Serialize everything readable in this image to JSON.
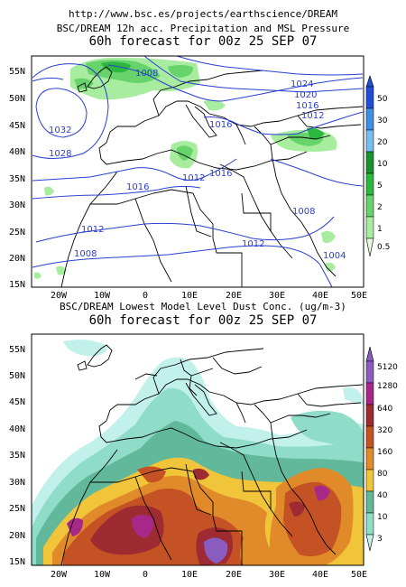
{
  "url": "http://www.bsc.es/projects/earthscience/DREAM",
  "panel1": {
    "title": "BSC/DREAM 12h acc. Precipitation and MSL Pressure",
    "subtitle": "60h forecast for 00z 25 SEP 07",
    "isobar_labels": [
      "1008",
      "1032",
      "1028",
      "1016",
      "1016",
      "1012",
      "1016",
      "1024",
      "1020",
      "1016",
      "1012",
      "1012",
      "1008",
      "1008",
      "1012",
      "1004"
    ],
    "colorbar_labels": [
      "50",
      "30",
      "20",
      "10",
      "5",
      "2",
      "1",
      "0.5"
    ],
    "colorbar_colors": [
      "#1f4fd8",
      "#3f8fe6",
      "#78bdf0",
      "#18922a",
      "#2cb83e",
      "#66d46a",
      "#a8eca0",
      "#e3f9de"
    ]
  },
  "panel2": {
    "title": "BSC/DREAM Lowest Model Level Dust Conc. (ug/m-3)",
    "subtitle": "60h forecast for 00z 25 SEP 07",
    "colorbar_labels": [
      "5120",
      "1280",
      "640",
      "320",
      "160",
      "80",
      "40",
      "10",
      "3"
    ],
    "colorbar_colors": [
      "#8a5cc0",
      "#a8288a",
      "#9e2a32",
      "#c45224",
      "#e08a2a",
      "#f1c53a",
      "#62b89a",
      "#8fdcc8",
      "#c2f1ec"
    ]
  },
  "lat_labels": [
    "55N",
    "50N",
    "45N",
    "40N",
    "35N",
    "30N",
    "25N",
    "20N",
    "15N"
  ],
  "lon_labels": [
    "20W",
    "10W",
    "0",
    "10E",
    "20E",
    "30E",
    "40E",
    "50E"
  ]
}
